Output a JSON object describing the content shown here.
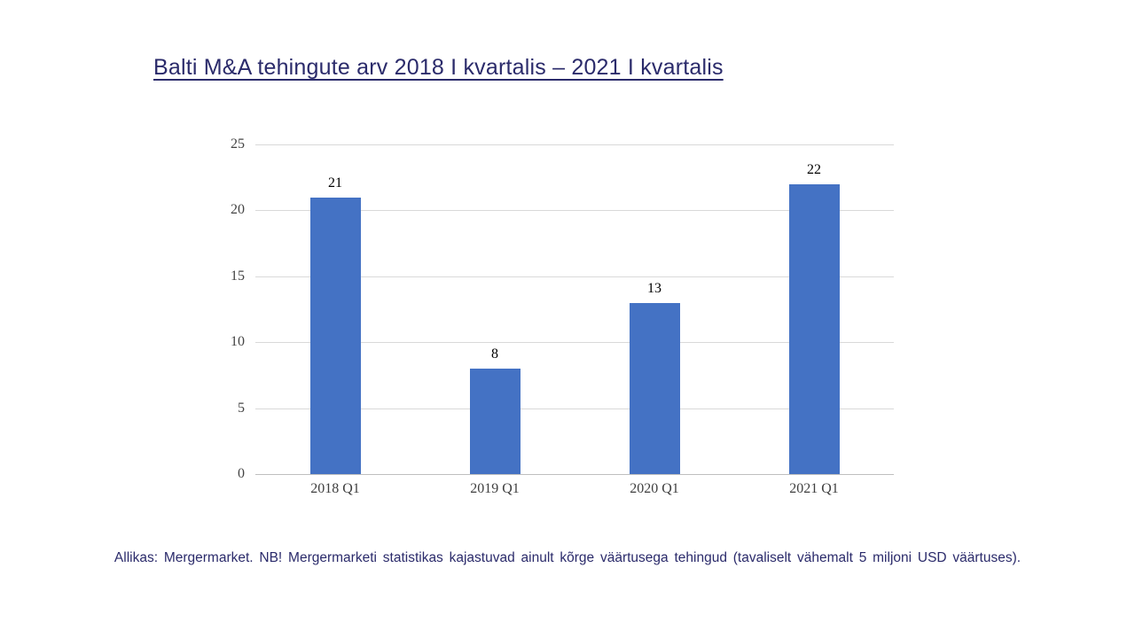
{
  "title": {
    "text": "Balti M&A tehingute arv 2018 I kvartalis – 2021 I kvartalis"
  },
  "footer": {
    "text": "Allikas: Mergermarket. NB! Mergermarketi statistikas kajastuvad ainult kõrge väärtusega tehingud (tavaliselt vähemalt 5 miljoni USD väärtuses)."
  },
  "chart_data": {
    "type": "bar",
    "title": "Balti M&A tehingute arv 2018 I kvartalis – 2021 I kvartalis",
    "categories": [
      "2018 Q1",
      "2019 Q1",
      "2020 Q1",
      "2021 Q1"
    ],
    "values": [
      21,
      8,
      13,
      22
    ],
    "data_labels": [
      21,
      8,
      13,
      22
    ],
    "xlabel": "",
    "ylabel": "",
    "ylim": [
      0,
      25
    ],
    "yticks": [
      0,
      5,
      10,
      15,
      20,
      25
    ],
    "grid": true,
    "legend": false
  },
  "colors": {
    "background": "#FFFFFF",
    "bar": "#4472C4",
    "gridline": "#D9D9D9",
    "axis_line": "#BFBFBF",
    "y_tick_label": "#444444",
    "x_tick_label": "#3F3F3F",
    "data_label": "#000000",
    "title_text": "#2B2B6B",
    "footer_text": "#2B2B6B"
  }
}
